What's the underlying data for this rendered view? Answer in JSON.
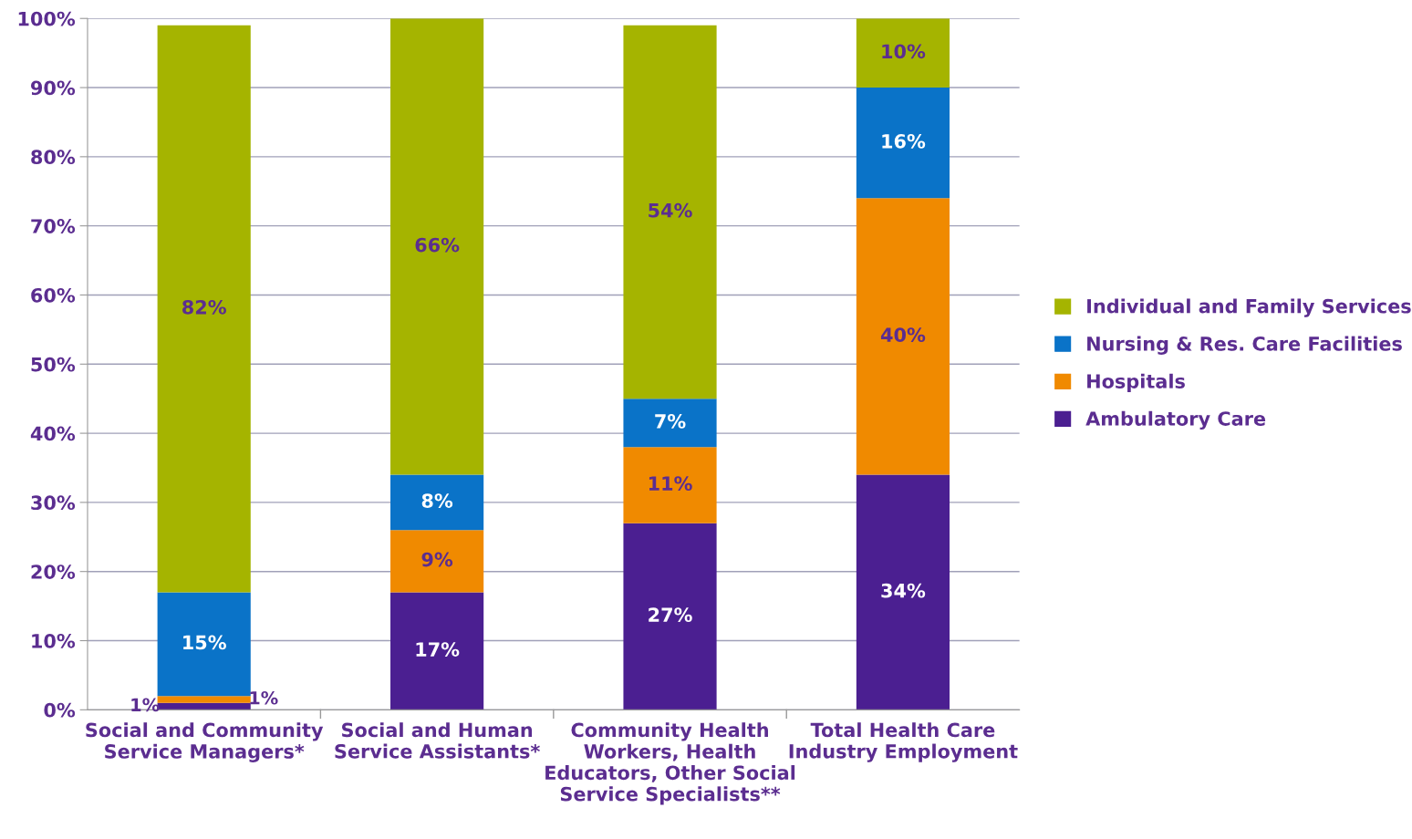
{
  "chart_data": {
    "type": "bar",
    "stacked": true,
    "grid": "y",
    "legend": "right",
    "categories": [
      "Social and Community\nService Managers*",
      "Social and Human\nService Assistants*",
      "Community Health\nWorkers, Health\nEducators, Other Social\nService Specialists**",
      "Total Health Care\nIndustry Employment"
    ],
    "series": [
      {
        "name": "Ambulatory Care",
        "color": "#4b1f91",
        "values": [
          1,
          17,
          27,
          34
        ],
        "value_labels": [
          "1%",
          "17%",
          "27%",
          "34%"
        ]
      },
      {
        "name": "Hospitals",
        "color": "#f08a00",
        "values": [
          1,
          9,
          11,
          40
        ],
        "value_labels": [
          "1%",
          "9%",
          "11%",
          "40%"
        ]
      },
      {
        "name": "Nursing & Res. Care Facilities",
        "color": "#0a73c8",
        "values": [
          15,
          8,
          7,
          16
        ],
        "value_labels": [
          "15%",
          "8%",
          "7%",
          "16%"
        ]
      },
      {
        "name": "Individual and Family Services",
        "color": "#a5b400",
        "values": [
          82,
          66,
          54,
          10
        ],
        "value_labels": [
          "82%",
          "66%",
          "54%",
          "10%"
        ]
      }
    ],
    "ylim": [
      0,
      100
    ],
    "yticks": [
      {
        "value": 0,
        "label": "0%"
      },
      {
        "value": 10,
        "label": "10%"
      },
      {
        "value": 20,
        "label": "20%"
      },
      {
        "value": 30,
        "label": "30%"
      },
      {
        "value": 40,
        "label": "40%"
      },
      {
        "value": 50,
        "label": "50%"
      },
      {
        "value": 60,
        "label": "60%"
      },
      {
        "value": 70,
        "label": "70%"
      },
      {
        "value": 80,
        "label": "80%"
      },
      {
        "value": 90,
        "label": "90%"
      },
      {
        "value": 100,
        "label": "100%"
      }
    ]
  }
}
